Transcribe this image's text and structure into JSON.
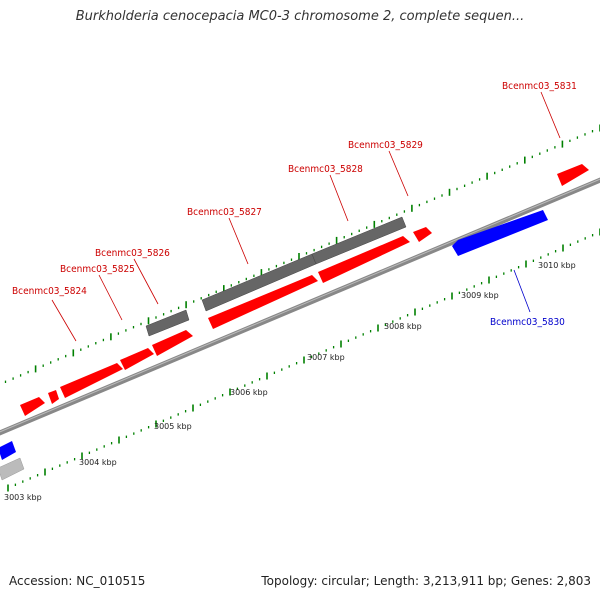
{
  "title": "Burkholderia cenocepacia MC0-3 chromosome 2, complete sequen...",
  "footer": {
    "accession": "Accession: NC_010515",
    "summary": "Topology: circular; Length: 3,213,911 bp; Genes: 2,803"
  },
  "colors": {
    "forward_gene": "#ff0000",
    "reverse_gene": "#0000ff",
    "other_feature": "#666666",
    "backbone": "#888888",
    "tick": "#008000",
    "label_forward": "#cc0000",
    "label_reverse": "#0000cc"
  },
  "gene_labels": [
    {
      "text": "Bcenmc03_5824",
      "strand": "forward"
    },
    {
      "text": "Bcenmc03_5825",
      "strand": "forward"
    },
    {
      "text": "Bcenmc03_5826",
      "strand": "forward"
    },
    {
      "text": "Bcenmc03_5827",
      "strand": "forward"
    },
    {
      "text": "Bcenmc03_5828",
      "strand": "forward"
    },
    {
      "text": "Bcenmc03_5829",
      "strand": "forward"
    },
    {
      "text": "Bcenmc03_5830",
      "strand": "reverse"
    },
    {
      "text": "Bcenmc03_5831",
      "strand": "forward"
    }
  ],
  "kbp_labels": [
    "3003 kbp",
    "3004 kbp",
    "3005 kbp",
    "3006 kbp",
    "3007 kbp",
    "3008 kbp",
    "3009 kbp",
    "3010 kbp"
  ]
}
